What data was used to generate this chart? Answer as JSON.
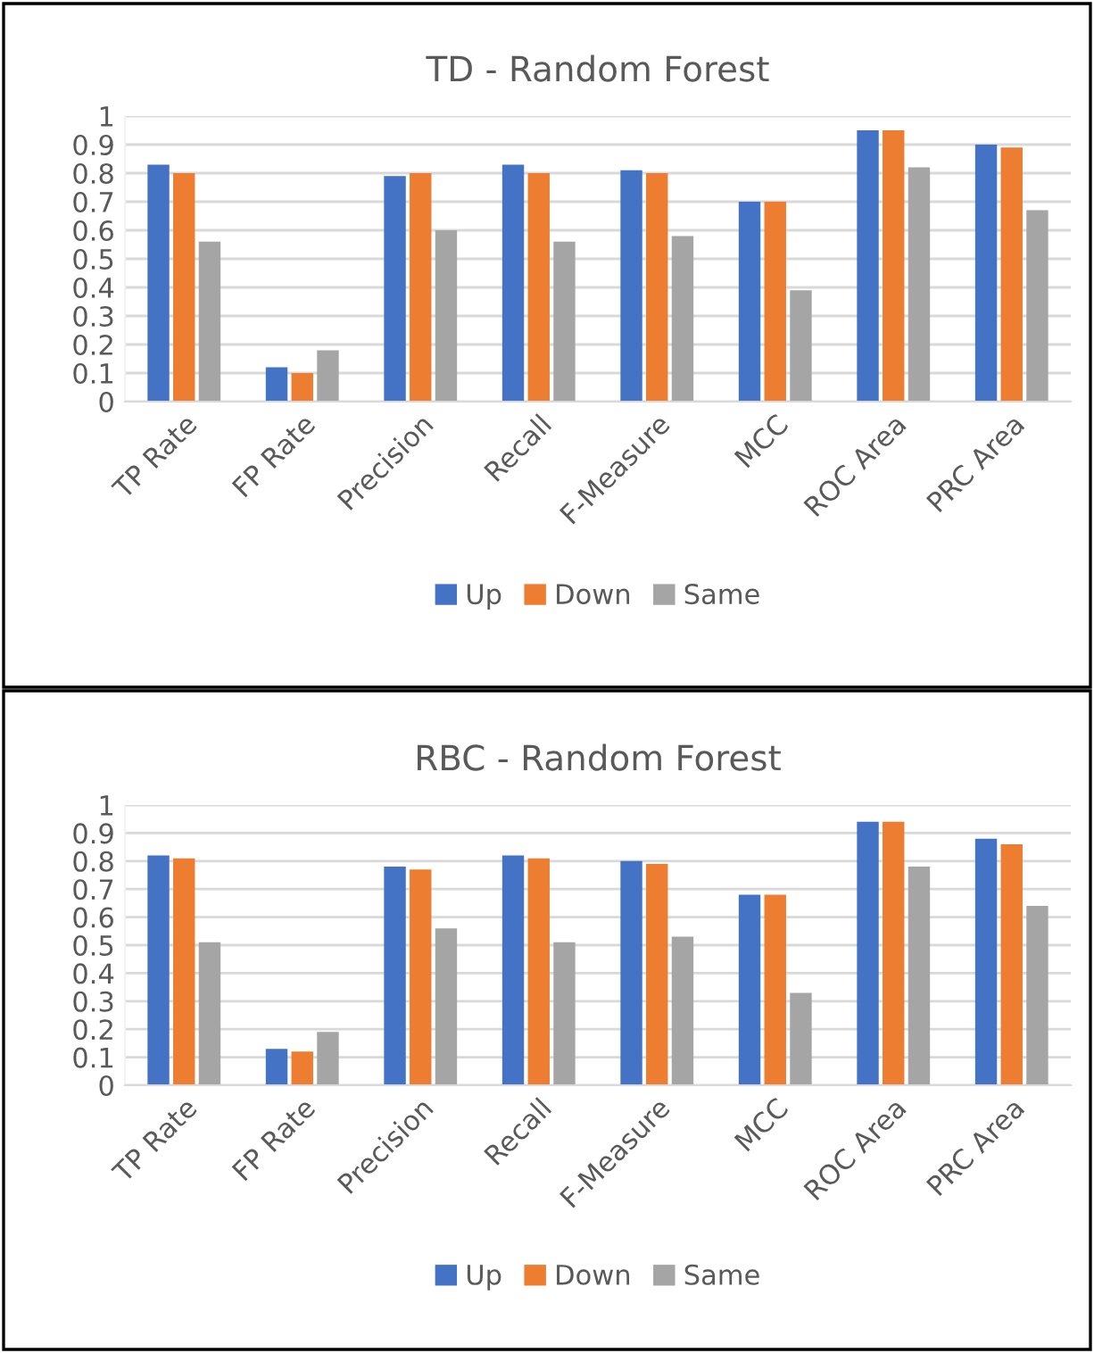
{
  "chart_data": [
    {
      "type": "bar",
      "title": "TD - Random Forest",
      "categories": [
        "TP Rate",
        "FP Rate",
        "Precision",
        "Recall",
        "F-Measure",
        "MCC",
        "ROC Area",
        "PRC Area"
      ],
      "series": [
        {
          "name": "Up",
          "color": "#4472c4",
          "values": [
            0.83,
            0.12,
            0.79,
            0.83,
            0.81,
            0.7,
            0.95,
            0.9
          ]
        },
        {
          "name": "Down",
          "color": "#ed7d31",
          "values": [
            0.8,
            0.1,
            0.8,
            0.8,
            0.8,
            0.7,
            0.95,
            0.89
          ]
        },
        {
          "name": "Same",
          "color": "#a5a5a5",
          "values": [
            0.56,
            0.18,
            0.6,
            0.56,
            0.58,
            0.39,
            0.82,
            0.67
          ]
        }
      ],
      "ylim": [
        0,
        1
      ],
      "yticks": [
        0,
        0.1,
        0.2,
        0.3,
        0.4,
        0.5,
        0.6,
        0.7,
        0.8,
        0.9,
        1
      ],
      "grid": "y",
      "legend": "bottom"
    },
    {
      "type": "bar",
      "title": "RBC - Random Forest",
      "categories": [
        "TP Rate",
        "FP Rate",
        "Precision",
        "Recall",
        "F-Measure",
        "MCC",
        "ROC Area",
        "PRC Area"
      ],
      "series": [
        {
          "name": "Up",
          "color": "#4472c4",
          "values": [
            0.82,
            0.13,
            0.78,
            0.82,
            0.8,
            0.68,
            0.94,
            0.88
          ]
        },
        {
          "name": "Down",
          "color": "#ed7d31",
          "values": [
            0.81,
            0.12,
            0.77,
            0.81,
            0.79,
            0.68,
            0.94,
            0.86
          ]
        },
        {
          "name": "Same",
          "color": "#a5a5a5",
          "values": [
            0.51,
            0.19,
            0.56,
            0.51,
            0.53,
            0.33,
            0.78,
            0.64
          ]
        }
      ],
      "ylim": [
        0,
        1
      ],
      "yticks": [
        0,
        0.1,
        0.2,
        0.3,
        0.4,
        0.5,
        0.6,
        0.7,
        0.8,
        0.9,
        1
      ],
      "grid": "y",
      "legend": "bottom"
    }
  ]
}
